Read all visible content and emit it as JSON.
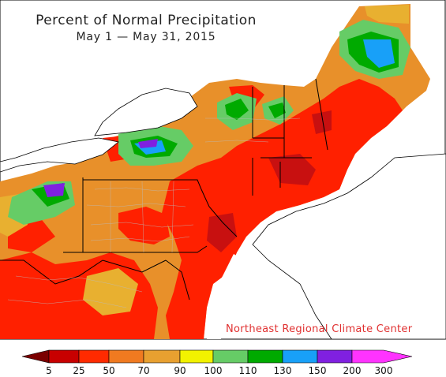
{
  "title": "Percent of Normal Precipitation",
  "subtitle": "May 1 — May 31, 2015",
  "credit": "Northeast Regional Climate Center",
  "legend": {
    "labels": [
      "5",
      "25",
      "50",
      "70",
      "90",
      "100",
      "110",
      "130",
      "150",
      "200",
      "300"
    ],
    "colors": [
      "#7a0000",
      "#c80000",
      "#ff2a00",
      "#f07a20",
      "#e8a030",
      "#f2f200",
      "#66cc66",
      "#00aa00",
      "#18a0f8",
      "#8020e0",
      "#ff33ff"
    ]
  },
  "map_colors": {
    "water": "#ffffff",
    "land_base": "#e8902a",
    "dry": "#ff2000",
    "very_dry": "#c81010",
    "normal": "#e8b030",
    "wet": "#66cc66",
    "very_wet": "#00aa00",
    "wettest": "#18a0f8",
    "extreme": "#8020e0"
  }
}
